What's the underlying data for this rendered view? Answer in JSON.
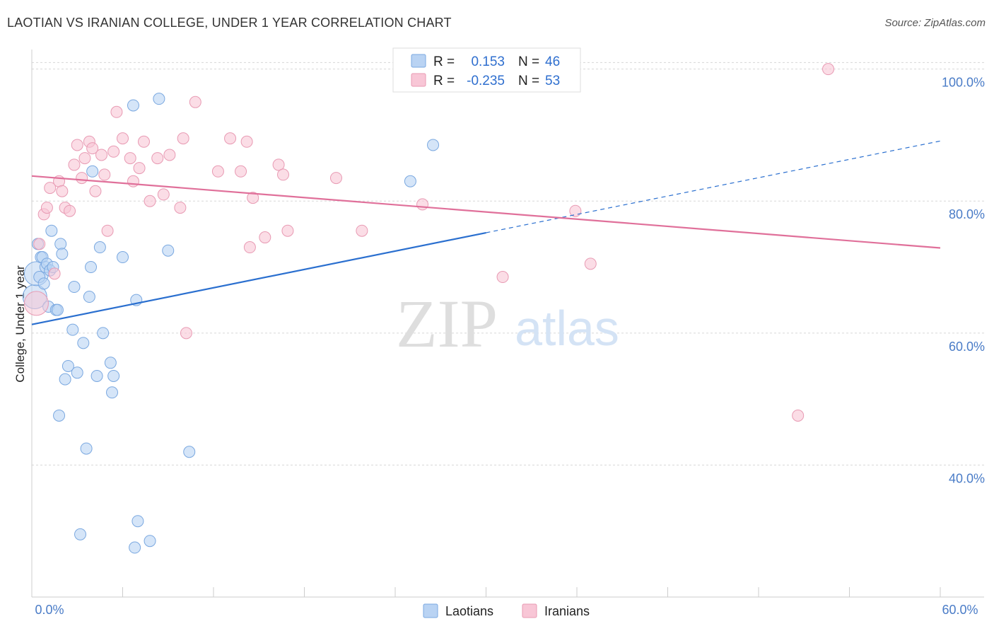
{
  "title": "LAOTIAN VS IRANIAN COLLEGE, UNDER 1 YEAR CORRELATION CHART",
  "source": "Source: ZipAtlas.com",
  "watermark": {
    "zip": "ZIP",
    "atlas": "atlas"
  },
  "colors": {
    "laotian_fill": "#b9d3f3",
    "laotian_stroke": "#7aa8e0",
    "laotian_line": "#2a6fcf",
    "iranian_fill": "#f8c6d6",
    "iranian_stroke": "#e89ab3",
    "iranian_line": "#e0709a",
    "grid": "#d8d8d8",
    "tick_label": "#4a7cc7"
  },
  "legend": {
    "rows": [
      {
        "r_label": "R =",
        "r_value": "0.153",
        "n_label": "N =",
        "n_value": "46"
      },
      {
        "r_label": "R =",
        "r_value": "-0.235",
        "n_label": "N =",
        "n_value": "53"
      }
    ]
  },
  "bottom_legend": [
    "Laotians",
    "Iranians"
  ],
  "chart_data": {
    "type": "scatter",
    "title": "LAOTIAN VS IRANIAN COLLEGE, UNDER 1 YEAR CORRELATION CHART",
    "xlabel": "",
    "ylabel": "College, Under 1 year",
    "xlim": [
      0,
      60
    ],
    "ylim": [
      20,
      102
    ],
    "x_tick_labels": [
      "0.0%",
      "60.0%"
    ],
    "y_ticks": [
      40,
      60,
      80,
      100
    ],
    "y_tick_labels": [
      "40.0%",
      "60.0%",
      "80.0%",
      "100.0%"
    ],
    "series": [
      {
        "name": "Laotians",
        "r": 0.153,
        "n": 46,
        "trend": {
          "x0": 0,
          "y0": 61.3,
          "x1": 30,
          "y1": 75.2,
          "dash_x1": 60,
          "dash_y1": 89.1
        },
        "points": [
          [
            0.2,
            65.5
          ],
          [
            0.3,
            69.0
          ],
          [
            0.4,
            73.5
          ],
          [
            0.5,
            68.5
          ],
          [
            0.6,
            71.5
          ],
          [
            0.7,
            71.5
          ],
          [
            0.8,
            67.5
          ],
          [
            0.9,
            70.0
          ],
          [
            1.0,
            70.5
          ],
          [
            1.1,
            64.0
          ],
          [
            1.2,
            69.5
          ],
          [
            1.3,
            75.5
          ],
          [
            1.4,
            70.0
          ],
          [
            1.6,
            63.5
          ],
          [
            1.7,
            63.5
          ],
          [
            1.8,
            47.5
          ],
          [
            1.9,
            73.5
          ],
          [
            2.0,
            72.0
          ],
          [
            2.2,
            53.0
          ],
          [
            2.4,
            55.0
          ],
          [
            2.7,
            60.5
          ],
          [
            2.8,
            67.0
          ],
          [
            3.0,
            54.0
          ],
          [
            3.2,
            29.5
          ],
          [
            3.4,
            58.5
          ],
          [
            3.6,
            42.5
          ],
          [
            3.8,
            65.5
          ],
          [
            3.9,
            70.0
          ],
          [
            4.0,
            84.5
          ],
          [
            4.3,
            53.5
          ],
          [
            4.5,
            73.0
          ],
          [
            4.7,
            60.0
          ],
          [
            5.2,
            55.5
          ],
          [
            5.3,
            51.0
          ],
          [
            5.4,
            53.5
          ],
          [
            6.0,
            71.5
          ],
          [
            6.7,
            94.5
          ],
          [
            6.8,
            27.5
          ],
          [
            6.9,
            65.0
          ],
          [
            7.0,
            31.5
          ],
          [
            7.8,
            28.5
          ],
          [
            8.4,
            95.5
          ],
          [
            9.0,
            72.5
          ],
          [
            10.4,
            42.0
          ],
          [
            25.0,
            83.0
          ],
          [
            26.5,
            88.5
          ]
        ]
      },
      {
        "name": "Iranians",
        "r": -0.235,
        "n": 53,
        "trend": {
          "x0": 0,
          "y0": 83.8,
          "x1": 60,
          "y1": 72.9
        },
        "points": [
          [
            0.3,
            64.5
          ],
          [
            0.5,
            73.5
          ],
          [
            0.8,
            78.0
          ],
          [
            1.0,
            79.0
          ],
          [
            1.2,
            82.0
          ],
          [
            1.5,
            69.0
          ],
          [
            1.8,
            83.0
          ],
          [
            2.0,
            81.5
          ],
          [
            2.2,
            79.0
          ],
          [
            2.5,
            78.5
          ],
          [
            2.8,
            85.5
          ],
          [
            3.0,
            88.5
          ],
          [
            3.3,
            83.5
          ],
          [
            3.5,
            86.5
          ],
          [
            3.8,
            89.0
          ],
          [
            4.0,
            88.0
          ],
          [
            4.2,
            81.5
          ],
          [
            4.6,
            87.0
          ],
          [
            4.8,
            84.0
          ],
          [
            5.0,
            75.5
          ],
          [
            5.4,
            87.5
          ],
          [
            5.6,
            93.5
          ],
          [
            6.0,
            89.5
          ],
          [
            6.5,
            86.5
          ],
          [
            6.7,
            83.0
          ],
          [
            7.1,
            85.0
          ],
          [
            7.4,
            89.0
          ],
          [
            7.8,
            80.0
          ],
          [
            8.3,
            86.5
          ],
          [
            8.7,
            81.0
          ],
          [
            9.1,
            87.0
          ],
          [
            9.8,
            79.0
          ],
          [
            10.0,
            89.5
          ],
          [
            10.2,
            60.0
          ],
          [
            10.8,
            95.0
          ],
          [
            12.3,
            84.5
          ],
          [
            13.1,
            89.5
          ],
          [
            13.8,
            84.5
          ],
          [
            14.2,
            89.0
          ],
          [
            14.4,
            73.0
          ],
          [
            14.6,
            80.5
          ],
          [
            15.4,
            74.5
          ],
          [
            16.3,
            85.5
          ],
          [
            16.6,
            84.0
          ],
          [
            16.9,
            75.5
          ],
          [
            20.1,
            83.5
          ],
          [
            21.8,
            75.5
          ],
          [
            25.8,
            79.5
          ],
          [
            31.1,
            68.5
          ],
          [
            35.9,
            78.5
          ],
          [
            36.9,
            70.5
          ],
          [
            50.6,
            47.5
          ],
          [
            52.6,
            100.0
          ]
        ]
      }
    ]
  }
}
